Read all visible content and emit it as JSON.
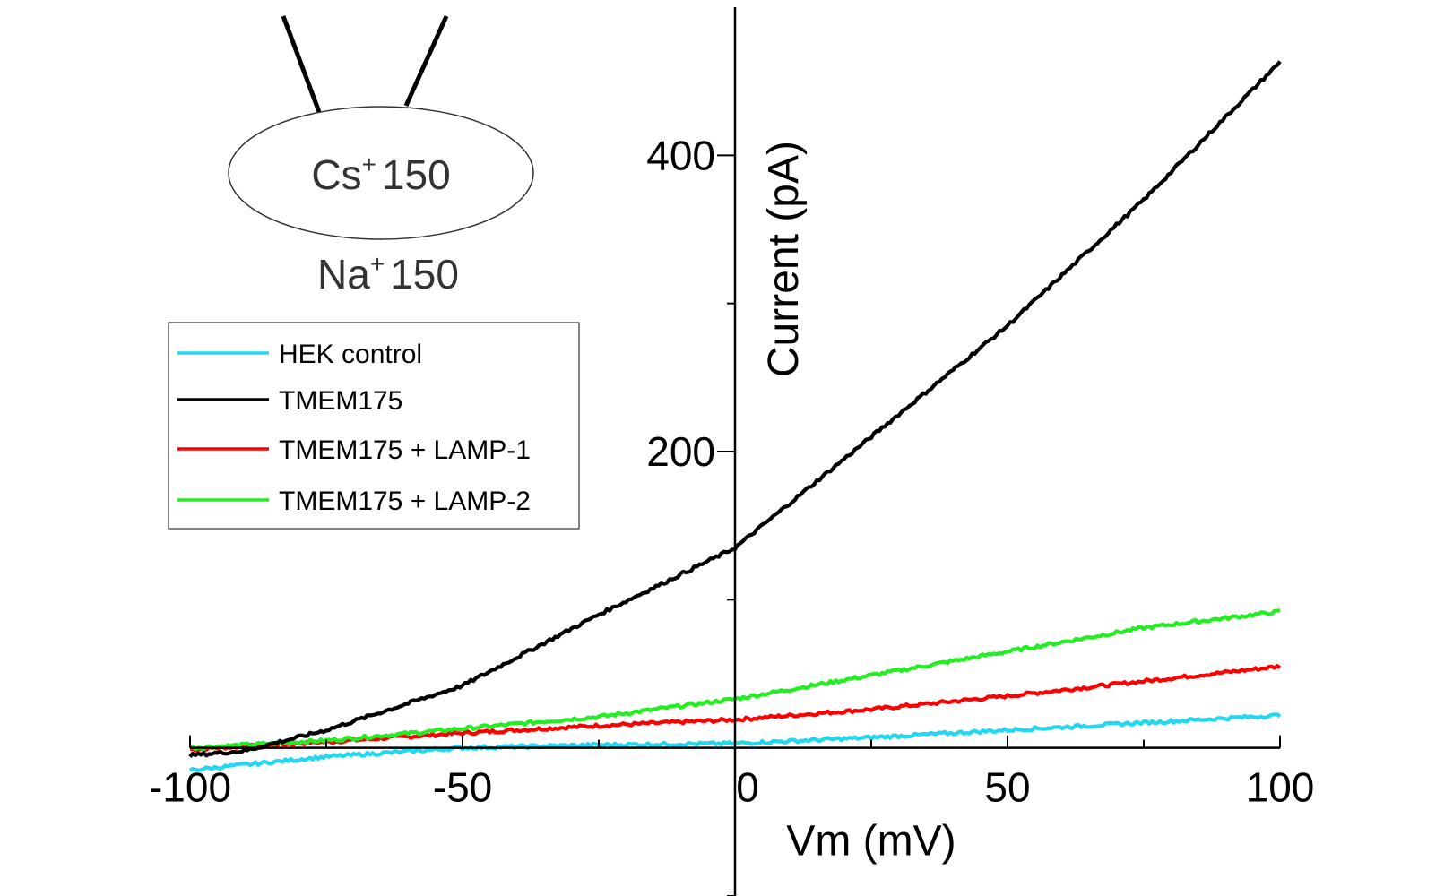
{
  "chart_data": {
    "type": "line",
    "title": "",
    "xlabel": "Vm (mV)",
    "ylabel": "Current (pA)",
    "xlim": [
      -100,
      100
    ],
    "ylim": [
      -100,
      500
    ],
    "x_ticks": [
      -100,
      -50,
      0,
      50,
      100
    ],
    "x_tick_labels": [
      "-100",
      "-50",
      "0",
      "50",
      "100"
    ],
    "y_ticks": [
      200,
      400
    ],
    "y_tick_labels": [
      "200",
      "400"
    ],
    "grid": false,
    "legend_position": "upper-left",
    "series": [
      {
        "name": "HEK control",
        "color": "#22d8f0",
        "x": [
          -100,
          -75,
          -50,
          -25,
          0,
          25,
          50,
          75,
          100
        ],
        "y": [
          -15,
          -6,
          0,
          2,
          3,
          7,
          12,
          17,
          22
        ]
      },
      {
        "name": "TMEM175",
        "color": "#000000",
        "x": [
          -100,
          -90,
          -75,
          -50,
          -25,
          0,
          25,
          50,
          75,
          100
        ],
        "y": [
          -5,
          -2,
          12,
          42,
          90,
          135,
          210,
          285,
          370,
          463
        ]
      },
      {
        "name": "TMEM175 + LAMP-1",
        "color": "#ff0000",
        "x": [
          -100,
          -75,
          -50,
          -25,
          0,
          25,
          50,
          75,
          100
        ],
        "y": [
          -1,
          4,
          10,
          15,
          19,
          26,
          35,
          45,
          55
        ]
      },
      {
        "name": "TMEM175 + LAMP-2",
        "color": "#22ee22",
        "x": [
          -100,
          -75,
          -50,
          -25,
          0,
          25,
          50,
          75,
          100
        ],
        "y": [
          0,
          5,
          13,
          21,
          33,
          49,
          65,
          81,
          92
        ]
      }
    ]
  },
  "diagram": {
    "inside_ion": "Cs",
    "inside_charge": "+",
    "inside_conc": "150",
    "outside_ion": "Na",
    "outside_charge": "+",
    "outside_conc": "150"
  }
}
